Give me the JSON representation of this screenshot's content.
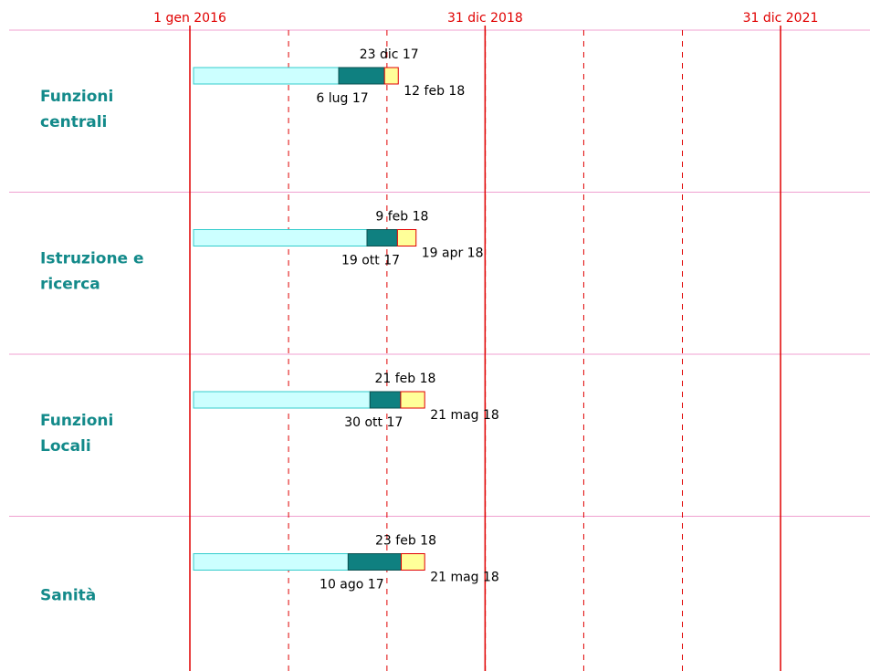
{
  "axis": {
    "labels": [
      "1 gen 2016",
      "31 dic 2018",
      "31 dic 2021"
    ]
  },
  "rows": [
    {
      "label": [
        "Funzioni",
        "centrali"
      ],
      "dates": [
        "6 lug 17",
        "23 dic 17",
        "12 feb 18"
      ]
    },
    {
      "label": [
        "Istruzione e",
        "ricerca"
      ],
      "dates": [
        "19 ott 17",
        "9 feb 18",
        "19 apr 18"
      ]
    },
    {
      "label": [
        "Funzioni",
        "Locali"
      ],
      "dates": [
        "30 ott 17",
        "21 feb 18",
        "21 mag 18"
      ]
    },
    {
      "label": [
        "Sanità"
      ],
      "dates": [
        "10 ago 17",
        "23 feb 18",
        "21 mag 18"
      ]
    }
  ]
}
